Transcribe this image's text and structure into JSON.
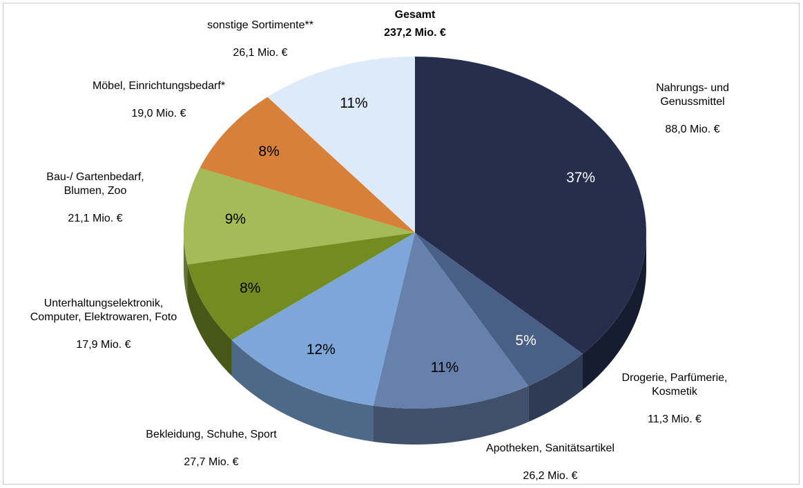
{
  "chart_data": {
    "type": "pie3d",
    "title": "Gesamt",
    "subtitle": "237,2 Mio. €",
    "categories": [
      "Nahrungs- und Genussmittel",
      "Drogerie, Parfümerie, Kosmetik",
      "Apotheken, Sanitätsartikel",
      "Bekleidung, Schuhe, Sport",
      "Unterhaltungselektronik,\nComputer, Elektrowaren, Foto",
      "Bau-/ Gartenbedarf,\nBlumen, Zoo",
      "Möbel, Einrichtungsbedarf*",
      "sonstige Sortimente**"
    ],
    "values": [
      88.0,
      11.3,
      26.2,
      27.7,
      17.9,
      21.1,
      19.0,
      26.1
    ],
    "value_labels": [
      "88,0 Mio. €",
      "11,3 Mio. €",
      "26,2 Mio. €",
      "27,7 Mio. €",
      "17,9 Mio. €",
      "21,1 Mio. €",
      "19,0 Mio. €",
      "26,1 Mio. €"
    ],
    "percent_labels": [
      "37%",
      "5%",
      "11%",
      "12%",
      "8%",
      "9%",
      "8%",
      "11%"
    ],
    "colors": [
      "#252e4d",
      "#4a5f85",
      "#6781ad",
      "#7ea7d9",
      "#728c22",
      "#a4bb57",
      "#d6803a",
      "#ddeafa"
    ]
  }
}
